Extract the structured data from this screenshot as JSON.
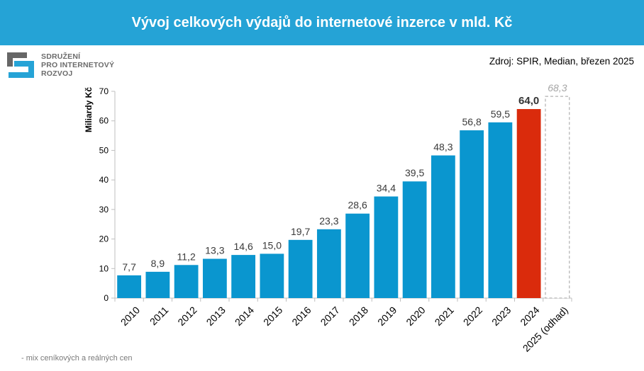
{
  "header": {
    "title": "Vývoj celkových výdajů do internetové inzerce v mld. Kč"
  },
  "logo": {
    "line1": "SDRUŽENÍ",
    "line2": "PRO INTERNETOVÝ",
    "line3": "ROZVOJ"
  },
  "source": "Zdroj: SPIR, Median, březen 2025",
  "footnote": "- mix ceníkových a reálných cen",
  "colors": {
    "header": "#25a3d6",
    "bar": "#0a96cf",
    "highlight": "#da2b0c",
    "estimate_border": "#b0b0b0"
  },
  "chart_data": {
    "type": "bar",
    "title": "Vývoj celkových výdajů do internetové inzerce v mld. Kč",
    "ylabel": "Miliardy Kč",
    "xlabel": "",
    "ylim": [
      0,
      70
    ],
    "yticks": [
      0,
      10,
      20,
      30,
      40,
      50,
      60,
      70
    ],
    "categories": [
      "2010",
      "2011",
      "2012",
      "2013",
      "2014",
      "2015",
      "2016",
      "2017",
      "2018",
      "2019",
      "2020",
      "2021",
      "2022",
      "2023",
      "2024",
      "2025 (odhad)"
    ],
    "values": [
      7.7,
      8.9,
      11.2,
      13.3,
      14.6,
      15.0,
      19.7,
      23.3,
      28.6,
      34.4,
      39.5,
      48.3,
      56.8,
      59.5,
      64.0,
      68.3
    ],
    "value_labels": [
      "7,7",
      "8,9",
      "11,2",
      "13,3",
      "14,6",
      "15,0",
      "19,7",
      "23,3",
      "28,6",
      "34,4",
      "39,5",
      "48,3",
      "56,8",
      "59,5",
      "64,0",
      "68,3"
    ],
    "highlight_category": "2024",
    "estimate_category": "2025 (odhad)",
    "grid": false,
    "legend": "none"
  }
}
